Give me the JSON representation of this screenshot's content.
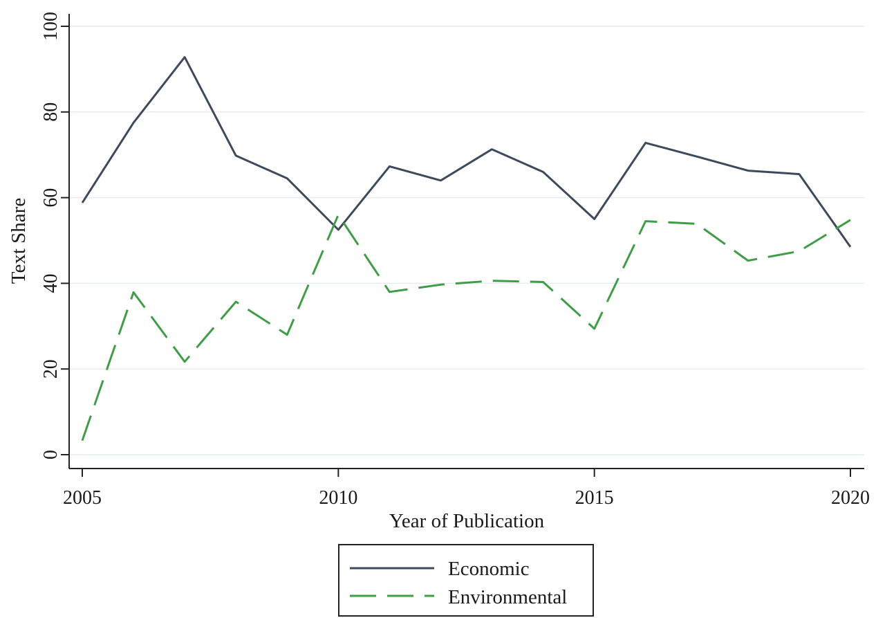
{
  "chart_data": {
    "type": "line",
    "title": "",
    "xlabel": "Year of Publication",
    "ylabel": "Text Share",
    "xlim": [
      2005,
      2020
    ],
    "ylim": [
      0,
      100
    ],
    "x_ticks": [
      2005,
      2010,
      2015,
      2020
    ],
    "y_ticks": [
      0,
      20,
      40,
      60,
      80,
      100
    ],
    "grid": true,
    "legend_position": "bottom-center",
    "x": [
      2005,
      2006,
      2007,
      2008,
      2009,
      2010,
      2011,
      2012,
      2013,
      2014,
      2015,
      2016,
      2017,
      2018,
      2019,
      2020
    ],
    "series": [
      {
        "name": "Economic",
        "color": "#3d4a5c",
        "style": "solid",
        "values": [
          58.8,
          77.5,
          92.8,
          69.8,
          64.5,
          52.5,
          67.3,
          64.0,
          71.3,
          66.0,
          55.0,
          72.8,
          69.6,
          66.3,
          65.5,
          48.5
        ]
      },
      {
        "name": "Environmental",
        "color": "#3e9e45",
        "style": "dashed",
        "values": [
          3.3,
          37.9,
          21.7,
          35.7,
          28.0,
          56.0,
          38.0,
          39.7,
          40.6,
          40.3,
          29.4,
          54.5,
          53.9,
          45.3,
          47.5,
          54.8
        ]
      }
    ]
  }
}
